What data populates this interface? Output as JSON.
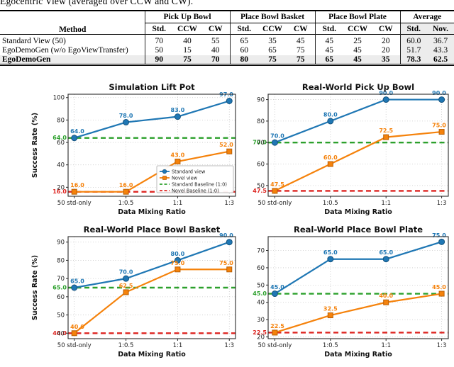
{
  "caption": "Egocentric View (averaged over CCW and CW).",
  "table": {
    "method_header": "Method",
    "col_groups": [
      {
        "label": "Pick Up Bowl",
        "cols": [
          "Std.",
          "CCW",
          "CW"
        ]
      },
      {
        "label": "Place Bowl Basket",
        "cols": [
          "Std.",
          "CCW",
          "CW"
        ]
      },
      {
        "label": "Place Bowl Plate",
        "cols": [
          "Std.",
          "CCW",
          "CW"
        ]
      },
      {
        "label": "Average",
        "cols": [
          "Std.",
          "Nov."
        ]
      }
    ],
    "rows": [
      {
        "method": "Standard View (50)",
        "values": [
          "70",
          "40",
          "55",
          "65",
          "35",
          "45",
          "45",
          "25",
          "20",
          "60.0",
          "36.7"
        ],
        "bold": false
      },
      {
        "method": "EgoDemoGen (w/o EgoViewTransfer)",
        "values": [
          "50",
          "15",
          "40",
          "60",
          "65",
          "75",
          "45",
          "45",
          "20",
          "51.7",
          "43.3"
        ],
        "bold": false
      },
      {
        "method": "EgoDemoGen",
        "values": [
          "90",
          "75",
          "70",
          "80",
          "75",
          "75",
          "65",
          "45",
          "35",
          "78.3",
          "62.5"
        ],
        "bold": true
      }
    ]
  },
  "colors": {
    "standard_view": "#1f77b4",
    "novel_view": "#f5820b",
    "standard_baseline": "#2ca02c",
    "novel_baseline": "#dd2420",
    "grid": "#c9c9c9",
    "spine": "#2a2a2a",
    "tick_text": "#1a1a1a"
  },
  "legend": {
    "standard_view": "Standard view",
    "novel_view": "Novel view",
    "standard_baseline": "Standard Baseline (1:0)",
    "novel_baseline": "Novel Baseline (1:0)"
  },
  "chart_data": [
    {
      "type": "line",
      "title": "Simulation Lift Pot",
      "xlabel": "Data Mixing Ratio",
      "ylabel": "Success Rate (%)",
      "categories": [
        "50 std-only",
        "1:0.5",
        "1:1",
        "1:3"
      ],
      "series": [
        {
          "name": "Standard view",
          "values": [
            64.0,
            78.0,
            83.0,
            97.0
          ]
        },
        {
          "name": "Novel view",
          "values": [
            16.0,
            16.0,
            43.0,
            52.0
          ]
        }
      ],
      "baselines": [
        {
          "name": "Standard Baseline (1:0)",
          "value": 64.0
        },
        {
          "name": "Novel Baseline (1:0)",
          "value": 16.0
        }
      ],
      "yticks": [
        20,
        40,
        60,
        80,
        100
      ],
      "ylim": [
        12,
        103
      ],
      "grid": true,
      "legend": true,
      "legend_position": "lower right"
    },
    {
      "type": "line",
      "title": "Real-World Pick Up Bowl",
      "xlabel": "Data Mixing Ratio",
      "ylabel": "Success Rate (%)",
      "categories": [
        "50 std-only",
        "1:0.5",
        "1:1",
        "1:3"
      ],
      "series": [
        {
          "name": "Standard view",
          "values": [
            70.0,
            80.0,
            90.0,
            90.0
          ]
        },
        {
          "name": "Novel view",
          "values": [
            47.5,
            60.0,
            72.5,
            75.0
          ]
        }
      ],
      "baselines": [
        {
          "name": "Standard Baseline (1:0)",
          "value": 70.0
        },
        {
          "name": "Novel Baseline (1:0)",
          "value": 47.5
        }
      ],
      "yticks": [
        50,
        60,
        70,
        80,
        90
      ],
      "ylim": [
        45,
        92.5
      ],
      "grid": true,
      "legend": false
    },
    {
      "type": "line",
      "title": "Real-World Place Bowl Basket",
      "xlabel": "Data Mixing Ratio",
      "ylabel": "Success Rate (%)",
      "categories": [
        "50 std-only",
        "1:0.5",
        "1:1",
        "1:3"
      ],
      "series": [
        {
          "name": "Standard view",
          "values": [
            65.0,
            70.0,
            80.0,
            90.0
          ]
        },
        {
          "name": "Novel view",
          "values": [
            40.0,
            62.5,
            75.0,
            75.0
          ]
        }
      ],
      "baselines": [
        {
          "name": "Standard Baseline (1:0)",
          "value": 65.0
        },
        {
          "name": "Novel Baseline (1:0)",
          "value": 40.0
        }
      ],
      "yticks": [
        40,
        50,
        60,
        70,
        80,
        90
      ],
      "ylim": [
        37,
        93
      ],
      "grid": true,
      "legend": false
    },
    {
      "type": "line",
      "title": "Real-World Place Bowl Plate",
      "xlabel": "Data Mixing Ratio",
      "ylabel": "Success Rate (%)",
      "categories": [
        "50 std-only",
        "1:0.5",
        "1:1",
        "1:3"
      ],
      "series": [
        {
          "name": "Standard view",
          "values": [
            45.0,
            65.0,
            65.0,
            75.0
          ]
        },
        {
          "name": "Novel view",
          "values": [
            22.5,
            32.5,
            40.0,
            45.0
          ]
        }
      ],
      "baselines": [
        {
          "name": "Standard Baseline (1:0)",
          "value": 45.0
        },
        {
          "name": "Novel Baseline (1:0)",
          "value": 22.5
        }
      ],
      "yticks": [
        20,
        30,
        40,
        50,
        60,
        70
      ],
      "ylim": [
        19,
        78
      ],
      "grid": true,
      "legend": false
    }
  ]
}
